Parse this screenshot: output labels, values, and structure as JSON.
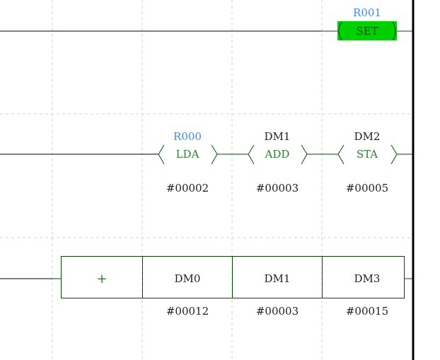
{
  "colors": {
    "wire": "#000000",
    "instruction_wire": "#005000",
    "operand_address": "#3a8ff0",
    "coil_fill": "#00d000",
    "instruction_text": "#2e7d32"
  },
  "rungs": [
    {
      "coil": {
        "address": "R001",
        "instruction": "SET",
        "icon": "set-coil-icon"
      }
    },
    {
      "instructions": [
        {
          "operand": "R000",
          "mnemonic": "LDA",
          "value": "#00002"
        },
        {
          "operand": "DM1",
          "mnemonic": "ADD",
          "value": "#00003"
        },
        {
          "operand": "DM2",
          "mnemonic": "STA",
          "value": "#00005"
        }
      ]
    },
    {
      "box": {
        "operator": "+",
        "cells": [
          {
            "operand": "DM0",
            "value": "#00012"
          },
          {
            "operand": "DM1",
            "value": "#00003"
          },
          {
            "operand": "DM3",
            "value": "#00015"
          }
        ]
      }
    }
  ]
}
